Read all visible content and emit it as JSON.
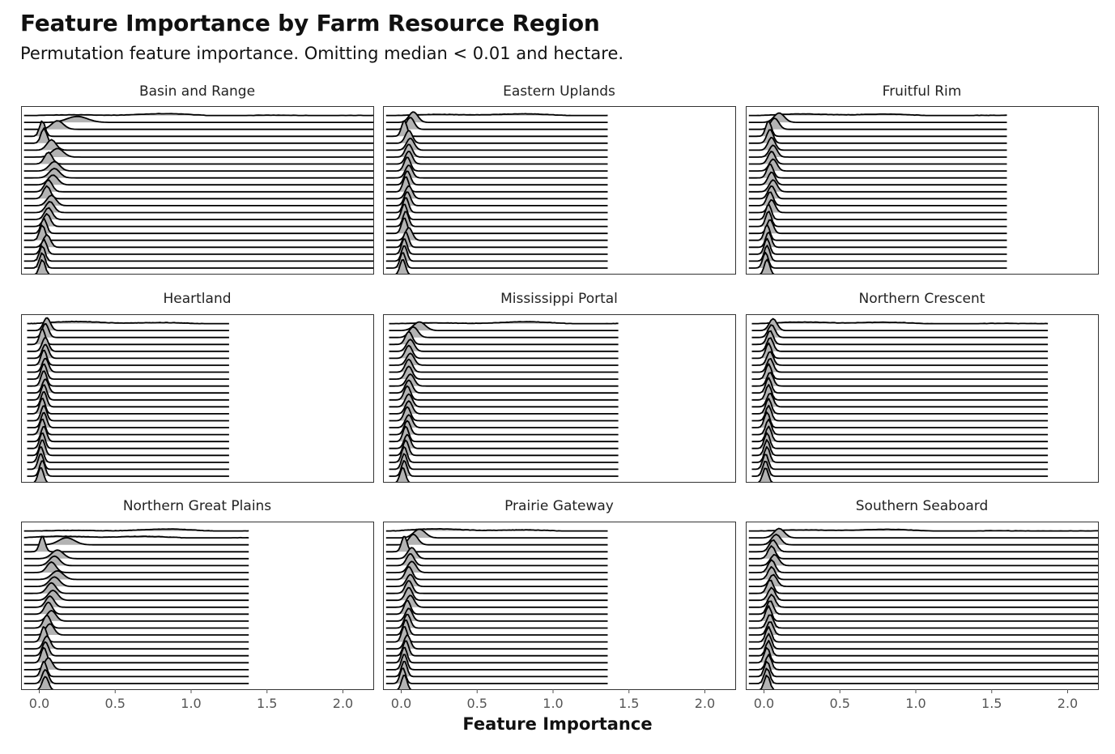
{
  "chart_data": {
    "type": "ridgeline",
    "title": "Feature Importance by Farm Resource Region",
    "subtitle": "Permutation feature importance. Omitting median < 0.01 and hectare.",
    "xlabel": "Feature Importance",
    "ylabel": "",
    "xlim": [
      -0.12,
      2.2
    ],
    "x_ticks": [
      0.0,
      0.5,
      1.0,
      1.5,
      2.0
    ],
    "x_tick_labels": [
      "0.0",
      "0.5",
      "1.0",
      "1.5",
      "2.0"
    ],
    "fill_color": "#b3b3b3",
    "line_color": "#000000",
    "ridges_per_panel": 24,
    "panels": [
      {
        "name": "Basin and Range",
        "x_min": -0.1,
        "x_max": 2.2,
        "peaks": [
          0.7,
          0.25,
          0.12,
          0.02,
          0.03,
          0.08,
          0.12,
          0.06,
          0.1,
          0.1,
          0.09,
          0.06,
          0.05,
          0.08,
          0.07,
          0.06,
          0.05,
          0.03,
          0.02,
          0.05,
          0.03,
          0.02,
          0.02,
          0.02
        ]
      },
      {
        "name": "Eastern Uplands",
        "x_min": -0.1,
        "x_max": 1.36,
        "peaks": [
          0.6,
          0.08,
          0.06,
          0.02,
          0.05,
          0.06,
          0.05,
          0.05,
          0.04,
          0.05,
          0.04,
          0.03,
          0.05,
          0.04,
          0.03,
          0.02,
          0.03,
          0.02,
          0.05,
          0.03,
          0.02,
          0.02,
          0.01,
          0.01
        ]
      },
      {
        "name": "Fruitful Rim",
        "x_min": -0.1,
        "x_max": 1.6,
        "peaks": [
          0.5,
          0.1,
          0.07,
          0.03,
          0.04,
          0.05,
          0.06,
          0.05,
          0.06,
          0.04,
          0.05,
          0.06,
          0.05,
          0.04,
          0.05,
          0.03,
          0.03,
          0.04,
          0.02,
          0.03,
          0.02,
          0.02,
          0.01,
          0.02
        ]
      },
      {
        "name": "Heartland",
        "x_min": -0.08,
        "x_max": 1.25,
        "peaks": [
          0.4,
          0.05,
          0.04,
          0.02,
          0.04,
          0.04,
          0.03,
          0.04,
          0.03,
          0.03,
          0.04,
          0.03,
          0.03,
          0.02,
          0.03,
          0.03,
          0.02,
          0.03,
          0.02,
          0.02,
          0.01,
          0.01,
          0.02,
          0.01
        ]
      },
      {
        "name": "Mississippi Portal",
        "x_min": -0.08,
        "x_max": 1.43,
        "peaks": [
          0.7,
          0.12,
          0.08,
          0.05,
          0.06,
          0.05,
          0.06,
          0.05,
          0.05,
          0.06,
          0.05,
          0.04,
          0.05,
          0.05,
          0.04,
          0.05,
          0.04,
          0.03,
          0.04,
          0.03,
          0.02,
          0.02,
          0.02,
          0.01
        ]
      },
      {
        "name": "Northern Crescent",
        "x_min": -0.08,
        "x_max": 1.87,
        "peaks": [
          0.5,
          0.06,
          0.05,
          0.04,
          0.04,
          0.03,
          0.04,
          0.04,
          0.03,
          0.04,
          0.03,
          0.03,
          0.04,
          0.03,
          0.03,
          0.02,
          0.03,
          0.03,
          0.02,
          0.02,
          0.02,
          0.01,
          0.01,
          0.01
        ]
      },
      {
        "name": "Northern Great Plains",
        "x_min": -0.1,
        "x_max": 1.38,
        "peaks": [
          0.75,
          0.4,
          0.18,
          0.02,
          0.12,
          0.1,
          0.08,
          0.12,
          0.1,
          0.08,
          0.09,
          0.07,
          0.06,
          0.08,
          0.05,
          0.07,
          0.03,
          0.05,
          0.04,
          0.03,
          0.06,
          0.03,
          0.04,
          0.04
        ]
      },
      {
        "name": "Prairie Gateway",
        "x_min": -0.1,
        "x_max": 1.36,
        "peaks": [
          0.4,
          0.12,
          0.08,
          0.02,
          0.07,
          0.06,
          0.07,
          0.05,
          0.06,
          0.05,
          0.05,
          0.06,
          0.04,
          0.05,
          0.04,
          0.03,
          0.02,
          0.04,
          0.03,
          0.02,
          0.02,
          0.02,
          0.01,
          0.02
        ]
      },
      {
        "name": "Southern Seaboard",
        "x_min": -0.1,
        "x_max": 2.2,
        "peaks": [
          0.6,
          0.1,
          0.08,
          0.06,
          0.05,
          0.07,
          0.05,
          0.05,
          0.06,
          0.04,
          0.05,
          0.05,
          0.04,
          0.03,
          0.04,
          0.04,
          0.03,
          0.03,
          0.03,
          0.02,
          0.03,
          0.02,
          0.02,
          0.02
        ]
      }
    ]
  }
}
